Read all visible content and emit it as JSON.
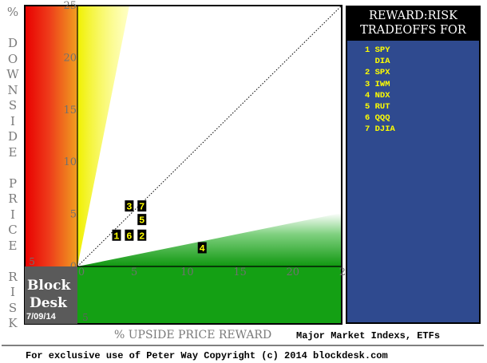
{
  "chart_data": {
    "type": "scatter",
    "y_axis_label": "% DOWNSIDE PRICE RISK",
    "x_axis_label": "% UPSIDE PRICE REWARD",
    "x_ticks": [
      "0",
      "5",
      "10",
      "15",
      "20",
      "25"
    ],
    "y_ticks": [
      "25",
      "20",
      "15",
      "10",
      "5",
      "0"
    ],
    "neg_ticks": [
      "5",
      "5"
    ],
    "xlim": [
      -5,
      25
    ],
    "ylim": [
      -5,
      25
    ],
    "points": [
      {
        "label": "1",
        "x": 3.7,
        "y": 3
      },
      {
        "label": "6",
        "x": 4.9,
        "y": 3
      },
      {
        "label": "2",
        "x": 6.1,
        "y": 3
      },
      {
        "label": "5",
        "x": 6.1,
        "y": 4.5
      },
      {
        "label": "3",
        "x": 4.9,
        "y": 5.8
      },
      {
        "label": "7",
        "x": 6.1,
        "y": 5.8
      },
      {
        "label": "4",
        "x": 11.8,
        "y": 1.8
      }
    ],
    "colors": {
      "red": "#e8201c",
      "yellow": "#f0f000",
      "green": "#1a9a1a",
      "point_bg": "#000000",
      "point_text": "#ffff00"
    }
  },
  "legend": {
    "title_lines": [
      "REWARD:RISK",
      "TRADEOFFS FOR"
    ],
    "items": [
      "1 SPY",
      "  DIA",
      "2 SPX",
      "3 IWM",
      "4 NDX",
      "5 RUT",
      "6 QQQ",
      "7 DJIA"
    ]
  },
  "brand": {
    "line1": "Block",
    "line2": "Desk",
    "date": "7/09/14"
  },
  "subtitle": "Major Market Indexs, ETFs",
  "footer": "For exclusive use of Peter Way Copyright (c) 2014 blockdesk.com"
}
